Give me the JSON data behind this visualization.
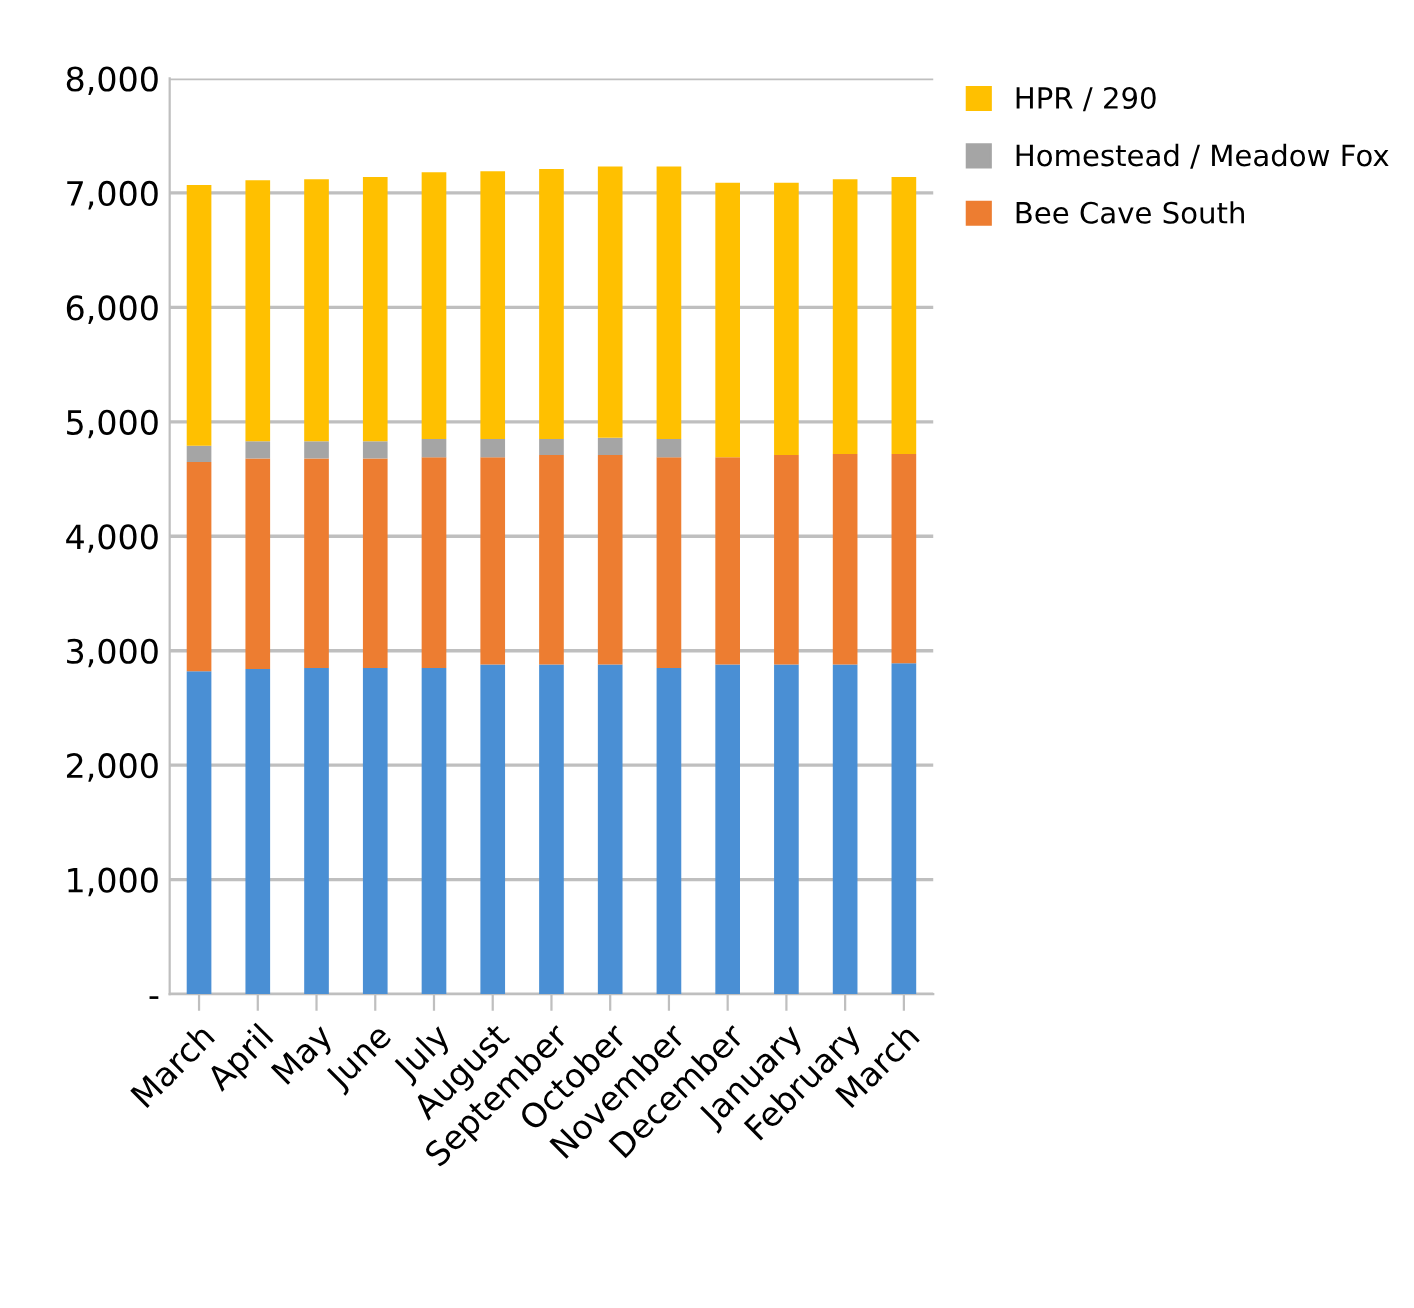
{
  "chart_data": {
    "type": "bar",
    "stacked": true,
    "categories": [
      "March",
      "April",
      "May",
      "June",
      "July",
      "August",
      "September",
      "October",
      "November",
      "December",
      "January",
      "February",
      "March"
    ],
    "series": [
      {
        "color": "#4a8fd4",
        "values": [
          2820,
          2840,
          2850,
          2850,
          2850,
          2880,
          2880,
          2880,
          2850,
          2880,
          2880,
          2880,
          2890
        ]
      },
      {
        "name": "Bee Cave South",
        "color": "#ed7d31",
        "values": [
          1830,
          1840,
          1830,
          1830,
          1840,
          1810,
          1830,
          1830,
          1840,
          1810,
          1830,
          1840,
          1830
        ]
      },
      {
        "name": "Homestead / Meadow Fox",
        "color": "#a5a5a5",
        "values": [
          140,
          150,
          150,
          150,
          160,
          160,
          140,
          150,
          160,
          0,
          0,
          0,
          0
        ]
      },
      {
        "name": "HPR / 290",
        "color": "#ffc000",
        "values": [
          2280,
          2280,
          2290,
          2310,
          2330,
          2340,
          2360,
          2370,
          2380,
          2400,
          2380,
          2400,
          2420
        ]
      }
    ],
    "ylim": [
      0,
      8000
    ],
    "yticks": [
      {
        "value": 0,
        "label": "-"
      },
      {
        "value": 1000,
        "label": "1,000"
      },
      {
        "value": 2000,
        "label": "2,000"
      },
      {
        "value": 3000,
        "label": "3,000"
      },
      {
        "value": 4000,
        "label": "4,000"
      },
      {
        "value": 5000,
        "label": "5,000"
      },
      {
        "value": 6000,
        "label": "6,000"
      },
      {
        "value": 7000,
        "label": "7,000"
      },
      {
        "value": 8000,
        "label": "8,000"
      }
    ],
    "grid": "y",
    "legend": "top right"
  }
}
